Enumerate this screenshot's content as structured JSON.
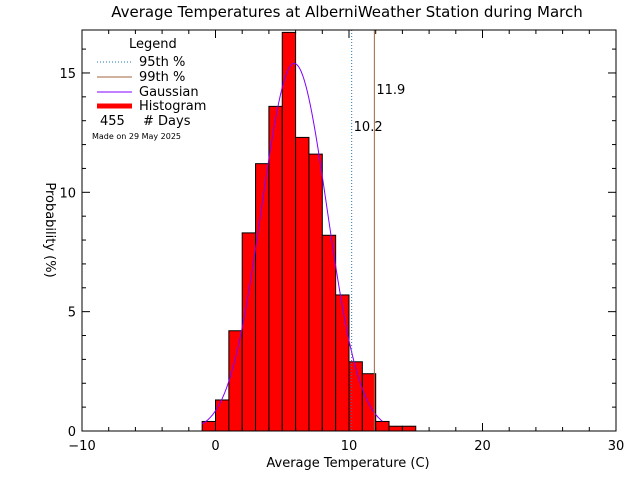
{
  "chart_data": {
    "type": "bar",
    "title": "Average Temperatures at AlberniWeather Station during March",
    "xlabel": "Average Temperature (C)",
    "ylabel": "Probability (%)",
    "xlim": [
      -10,
      30
    ],
    "ylim": [
      0,
      16.8
    ],
    "xticks": [
      -10,
      0,
      10,
      20,
      30
    ],
    "yticks": [
      0,
      5,
      10,
      15
    ],
    "bin_width": 1,
    "histogram": {
      "bin_starts": [
        -1,
        0,
        1,
        2,
        3,
        4,
        5,
        6,
        7,
        8,
        9,
        10,
        11,
        12,
        13,
        14
      ],
      "values": [
        0.4,
        1.3,
        4.2,
        8.3,
        11.2,
        13.6,
        16.7,
        12.3,
        11.6,
        8.2,
        5.7,
        2.9,
        2.4,
        0.4,
        0.2,
        0.2
      ]
    },
    "gaussian": {
      "mean": 5.9,
      "sigma": 2.45,
      "peak": 15.4,
      "x_range": [
        -1,
        12.5
      ]
    },
    "percentile_95": {
      "x": 10.2,
      "label": "10.2",
      "color": "#1f77b4"
    },
    "percentile_99": {
      "x": 11.9,
      "label": "11.9",
      "color": "#a0643c"
    },
    "legend": {
      "title": "Legend",
      "position": "top-left",
      "entries": [
        {
          "label": "95th %",
          "style": "dotted",
          "color": "#1f77b4"
        },
        {
          "label": "99th %",
          "style": "solid",
          "color": "#a0643c"
        },
        {
          "label": "Gaussian",
          "style": "solid",
          "color": "#8000ff"
        },
        {
          "label": "Histogram",
          "style": "thick",
          "color": "#ff0000"
        }
      ],
      "days_count": "455",
      "days_label": "# Days",
      "made_on": "Made on 29 May 2025"
    },
    "colors": {
      "bar_fill": "#ff0000",
      "bar_edge": "#000000",
      "gaussian": "#8000ff",
      "made_on": "#c0c0c0"
    }
  }
}
